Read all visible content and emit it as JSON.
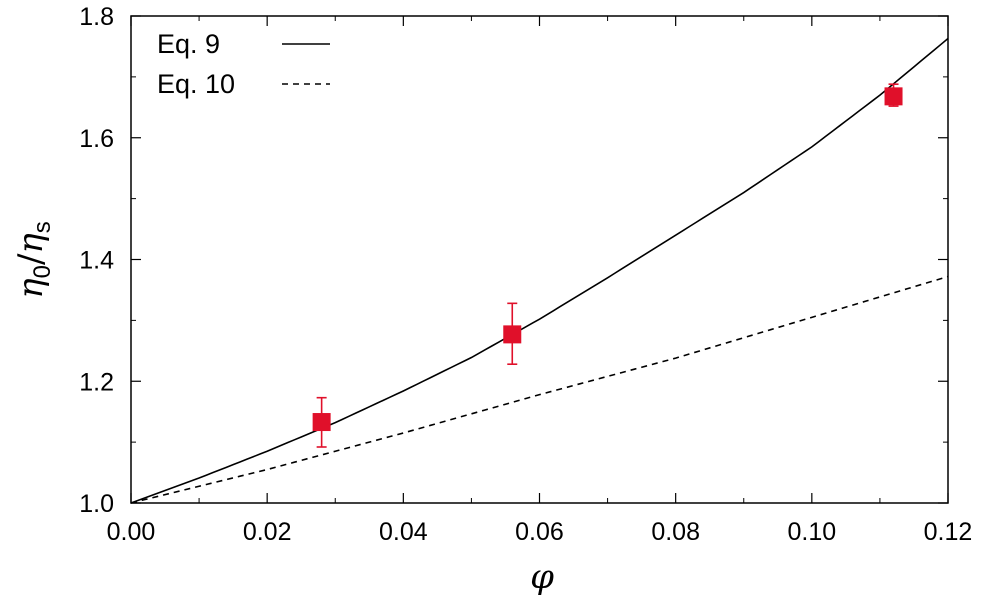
{
  "chart_data": {
    "type": "scatter",
    "xlabel": "φ",
    "ylabel": {
      "main": "η",
      "sub1": "0",
      "slash": "/",
      "main2": "η",
      "sub2": "s"
    },
    "xlim": [
      0.0,
      0.12
    ],
    "ylim": [
      1.0,
      1.8
    ],
    "x_ticks": [
      0.0,
      0.02,
      0.04,
      0.06,
      0.08,
      0.1,
      0.12
    ],
    "x_tick_labels": [
      "0.00",
      "0.02",
      "0.04",
      "0.06",
      "0.08",
      "0.10",
      "0.12"
    ],
    "y_ticks": [
      1.0,
      1.2,
      1.4,
      1.6,
      1.8
    ],
    "y_tick_labels": [
      "1.0",
      "1.2",
      "1.4",
      "1.6",
      "1.8"
    ],
    "grid": false,
    "legend_position": "top-left",
    "series": [
      {
        "name": "Eq. 9",
        "kind": "line",
        "style": "solid",
        "color": "#000000",
        "x": [
          0.0,
          0.01,
          0.02,
          0.03,
          0.04,
          0.05,
          0.06,
          0.07,
          0.08,
          0.09,
          0.1,
          0.11,
          0.12
        ],
        "y": [
          1.0,
          1.041,
          1.085,
          1.132,
          1.184,
          1.239,
          1.302,
          1.37,
          1.44,
          1.51,
          1.585,
          1.67,
          1.763
        ]
      },
      {
        "name": "Eq. 10",
        "kind": "line",
        "style": "dashed",
        "color": "#000000",
        "x": [
          0.0,
          0.02,
          0.04,
          0.06,
          0.08,
          0.1,
          0.12
        ],
        "y": [
          1.0,
          1.055,
          1.115,
          1.178,
          1.238,
          1.305,
          1.372
        ]
      },
      {
        "kind": "points",
        "marker": "square",
        "color": "#e0102a",
        "x": [
          0.028,
          0.056,
          0.112
        ],
        "y": [
          1.133,
          1.277,
          1.668
        ],
        "err_low": [
          1.092,
          1.228,
          1.652
        ],
        "err_high": [
          1.173,
          1.328,
          1.688
        ]
      }
    ]
  }
}
